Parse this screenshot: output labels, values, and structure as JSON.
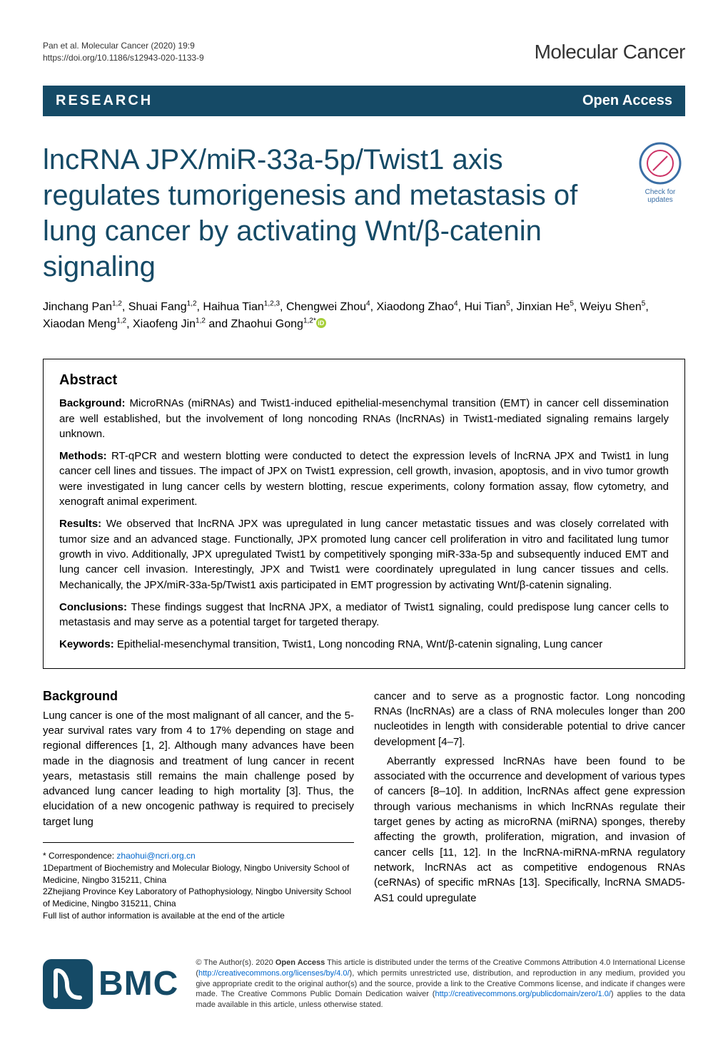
{
  "running_head": {
    "left_line1": "Pan et al. Molecular Cancer          (2020) 19:9",
    "left_line2": "https://doi.org/10.1186/s12943-020-1133-9",
    "journal": "Molecular Cancer"
  },
  "banner": {
    "section": "RESEARCH",
    "access": "Open Access"
  },
  "title": "lncRNA JPX/miR-33a-5p/Twist1 axis regulates tumorigenesis and metastasis of lung cancer by activating Wnt/β-catenin signaling",
  "crossmark_label": "Check for updates",
  "authors_html": "Jinchang Pan<sup>1,2</sup>, Shuai Fang<sup>1,2</sup>, Haihua Tian<sup>1,2,3</sup>, Chengwei Zhou<sup>4</sup>, Xiaodong Zhao<sup>4</sup>, Hui Tian<sup>5</sup>, Jinxian He<sup>5</sup>, Weiyu Shen<sup>5</sup>, Xiaodan Meng<sup>1,2</sup>, Xiaofeng Jin<sup>1,2</sup> and Zhaohui Gong<sup>1,2*</sup>",
  "abstract": {
    "heading": "Abstract",
    "background_label": "Background:",
    "background_text": " MicroRNAs (miRNAs) and Twist1-induced epithelial-mesenchymal transition (EMT) in cancer cell dissemination are well established, but the involvement of long noncoding RNAs (lncRNAs) in Twist1-mediated signaling remains largely unknown.",
    "methods_label": "Methods:",
    "methods_text": " RT-qPCR and western blotting were conducted to detect the expression levels of lncRNA JPX and Twist1 in lung cancer cell lines and tissues. The impact of JPX on Twist1 expression, cell growth, invasion, apoptosis, and in vivo tumor growth were investigated in lung cancer cells by western blotting, rescue experiments, colony formation assay, flow cytometry, and xenograft animal experiment.",
    "results_label": "Results:",
    "results_text": " We observed that lncRNA JPX was upregulated in lung cancer metastatic tissues and was closely correlated with tumor size and an advanced stage. Functionally, JPX promoted lung cancer cell proliferation in vitro and facilitated lung tumor growth in vivo. Additionally, JPX upregulated Twist1 by competitively sponging miR-33a-5p and subsequently induced EMT and lung cancer cell invasion. Interestingly, JPX and Twist1 were coordinately upregulated in lung cancer tissues and cells. Mechanically, the JPX/miR-33a-5p/Twist1 axis participated in EMT progression by activating Wnt/β-catenin signaling.",
    "conclusions_label": "Conclusions:",
    "conclusions_text": " These findings suggest that lncRNA JPX, a mediator of Twist1 signaling, could predispose lung cancer cells to metastasis and may serve as a potential target for targeted therapy.",
    "keywords_label": "Keywords:",
    "keywords_text": " Epithelial-mesenchymal transition, Twist1, Long noncoding RNA, Wnt/β-catenin signaling, Lung cancer"
  },
  "body": {
    "background_heading": "Background",
    "col1_p1": "Lung cancer is one of the most malignant of all cancer, and the 5-year survival rates vary from 4 to 17% depending on stage and regional differences [1, 2]. Although many advances have been made in the diagnosis and treatment of lung cancer in recent years, metastasis still remains the main challenge posed by advanced lung cancer leading to high mortality [3]. Thus, the elucidation of a new oncogenic pathway is required to precisely target lung",
    "col2_p1": "cancer and to serve as a prognostic factor. Long noncoding RNAs (lncRNAs) are a class of RNA molecules longer than 200 nucleotides in length with considerable potential to drive cancer development [4–7].",
    "col2_p2": "Aberrantly expressed lncRNAs have been found to be associated with the occurrence and development of various types of cancers [8–10]. In addition, lncRNAs affect gene expression through various mechanisms in which lncRNAs regulate their target genes by acting as microRNA (miRNA) sponges, thereby affecting the growth, proliferation, migration, and invasion of cancer cells [11, 12]. In the lncRNA-miRNA-mRNA regulatory network, lncRNAs act as competitive endogenous RNAs (ceRNAs) of specific mRNAs [13]. Specifically, lncRNA SMAD5-AS1 could upregulate"
  },
  "footnotes": {
    "corr": "* Correspondence: ",
    "email": "zhaohui@ncri.org.cn",
    "aff1": "1Department of Biochemistry and Molecular Biology, Ningbo University School of Medicine, Ningbo 315211, China",
    "aff2": "2Zhejiang Province Key Laboratory of Pathophysiology, Ningbo University School of Medicine, Ningbo 315211, China",
    "full": "Full list of author information is available at the end of the article"
  },
  "license": {
    "text_before": "© The Author(s). 2020 ",
    "oa": "Open Access",
    "text_mid": " This article is distributed under the terms of the Creative Commons Attribution 4.0 International License (",
    "link1": "http://creativecommons.org/licenses/by/4.0/",
    "text_mid2": "), which permits unrestricted use, distribution, and reproduction in any medium, provided you give appropriate credit to the original author(s) and the source, provide a link to the Creative Commons license, and indicate if changes were made. The Creative Commons Public Domain Dedication waiver (",
    "link2": "http://creativecommons.org/publicdomain/zero/1.0/",
    "text_end": ") applies to the data made available in this article, unless otherwise stated."
  },
  "bmc": "BMC",
  "colors": {
    "brand": "#154a66",
    "link": "#0066cc",
    "orcid": "#a6ce39"
  }
}
